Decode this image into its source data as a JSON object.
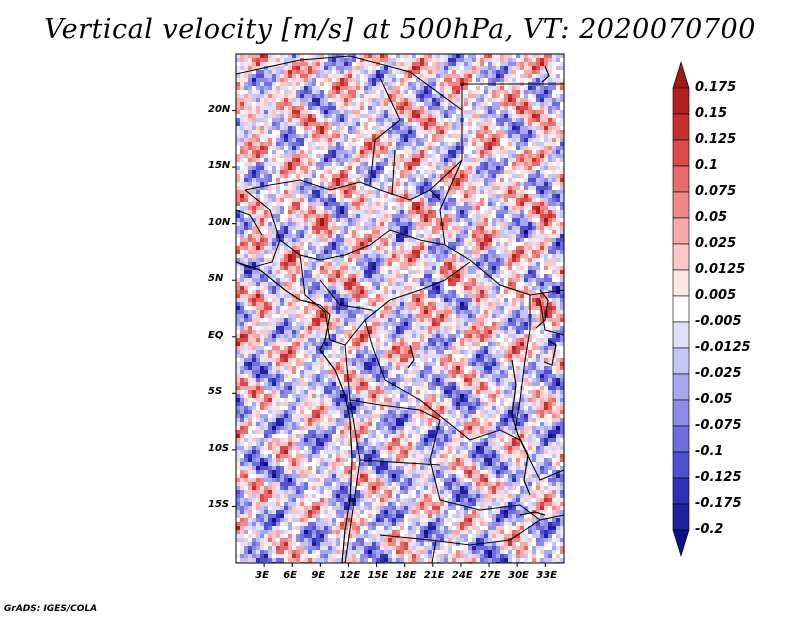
{
  "title": "Vertical velocity [m/s] at 500hPa, VT: 2020070700",
  "credit": "GrADS: IGES/COLA",
  "map": {
    "lon_range": [
      0,
      35
    ],
    "lat_range": [
      -20,
      25
    ],
    "lon_ticks": [
      "3E",
      "6E",
      "9E",
      "12E",
      "15E",
      "18E",
      "21E",
      "24E",
      "27E",
      "30E",
      "33E"
    ],
    "lat_ticks": [
      "20N",
      "15N",
      "10N",
      "5N",
      "EQ",
      "5S",
      "10S",
      "15S"
    ]
  },
  "colorbar": {
    "levels": [
      "0.175",
      "0.15",
      "0.125",
      "0.1",
      "0.075",
      "0.05",
      "0.025",
      "0.0125",
      "0.005",
      "-0.005",
      "-0.0125",
      "-0.025",
      "-0.05",
      "-0.075",
      "-0.1",
      "-0.125",
      "-0.175",
      "-0.2"
    ],
    "colors": [
      "#a01818",
      "#b42020",
      "#c83030",
      "#dc4a4a",
      "#e86a6a",
      "#f08888",
      "#f6aaaa",
      "#fac8c8",
      "#fde6e6",
      "#ffffff",
      "#e0e0fc",
      "#c6c6f6",
      "#a8a8f0",
      "#8c8ce8",
      "#6e6ee0",
      "#5050d0",
      "#3030b8",
      "#2020a0",
      "#10108a"
    ]
  }
}
